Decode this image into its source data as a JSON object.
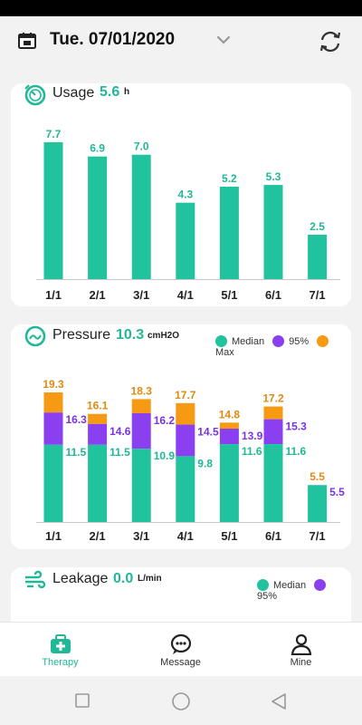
{
  "header": {
    "date": "Tue. 07/01/2020"
  },
  "usage": {
    "title": "Usage",
    "value": "5.6",
    "unit": "h",
    "chart_data": {
      "type": "bar",
      "categories": [
        "1/1",
        "2/1",
        "3/1",
        "4/1",
        "5/1",
        "6/1",
        "7/1"
      ],
      "values": [
        7.7,
        6.9,
        7.0,
        4.3,
        5.2,
        5.3,
        2.5
      ],
      "labels": [
        "7.7",
        "6.9",
        "7.0",
        "4.3",
        "5.2",
        "5.3",
        "2.5"
      ],
      "ymax": 7.7
    }
  },
  "pressure": {
    "title": "Pressure",
    "value": "10.3",
    "unit": "cmH2O",
    "legend": [
      "Median",
      "95%",
      "Max"
    ],
    "chart_data": {
      "type": "bar",
      "categories": [
        "1/1",
        "2/1",
        "3/1",
        "4/1",
        "5/1",
        "6/1",
        "7/1"
      ],
      "series": [
        {
          "name": "Median",
          "values": [
            11.5,
            11.5,
            10.9,
            9.8,
            11.6,
            11.6,
            5.5
          ],
          "labels": [
            "11.5",
            "11.5",
            "10.9",
            "9.8",
            "11.6",
            "11.6",
            ""
          ]
        },
        {
          "name": "95%",
          "values": [
            16.3,
            14.6,
            16.2,
            14.5,
            13.9,
            15.3,
            5.5
          ],
          "labels": [
            "16.3",
            "14.6",
            "16.2",
            "14.5",
            "13.9",
            "15.3",
            "5.5"
          ]
        },
        {
          "name": "Max",
          "values": [
            19.3,
            16.1,
            18.3,
            17.7,
            14.8,
            17.2,
            5.5
          ],
          "labels": [
            "19.3",
            "16.1",
            "18.3",
            "17.7",
            "14.8",
            "17.2",
            "5.5"
          ]
        }
      ],
      "ymax": 19.3
    }
  },
  "leakage": {
    "title": "Leakage",
    "value": "0.0",
    "unit": "L/min",
    "legend": [
      "Median",
      "95%"
    ]
  },
  "colors": {
    "median": "#20c39e",
    "p95": "#8a3ff0",
    "max": "#f59a12",
    "accent": "#20b896"
  },
  "nav": {
    "items": [
      "Therapy",
      "Message",
      "Mine"
    ]
  }
}
